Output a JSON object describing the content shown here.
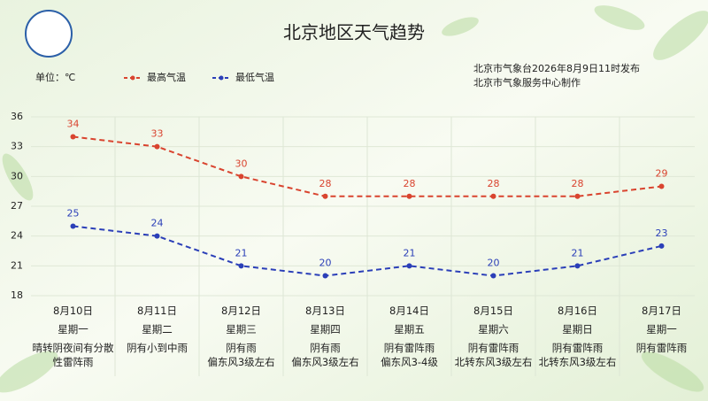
{
  "header": {
    "title": "北京地区天气趋势",
    "unit": "单位：℃",
    "publisher": "北京市气象台2026年8月9日11时发布",
    "producer": "北京市气象服务中心制作"
  },
  "chart_data": {
    "type": "line",
    "categories": [
      "8月10日",
      "8月11日",
      "8月12日",
      "8月13日",
      "8月14日",
      "8月15日",
      "8月16日",
      "8月17日"
    ],
    "series": [
      {
        "name": "最高气温",
        "color": "#d9442f",
        "values": [
          34,
          33,
          30,
          28,
          28,
          28,
          28,
          29
        ]
      },
      {
        "name": "最低气温",
        "color": "#2b3fb8",
        "values": [
          25,
          24,
          21,
          20,
          21,
          20,
          21,
          23
        ]
      }
    ],
    "ylim": [
      18,
      36
    ],
    "yticks": [
      18,
      21,
      24,
      27,
      30,
      33,
      36
    ],
    "grid": true,
    "legend": "top-left"
  },
  "forecast_table": {
    "weekdays": [
      "星期一",
      "星期二",
      "星期三",
      "星期四",
      "星期五",
      "星期六",
      "星期日",
      "星期一"
    ],
    "weather": [
      "晴转阴夜间有分散性雷阵雨",
      "阴有小到中雨",
      "阴有雨",
      "阴有雨",
      "阴有雷阵雨",
      "阴有雷阵雨",
      "阴有雷阵雨",
      "阴有雷阵雨"
    ],
    "wind": [
      null,
      null,
      "偏东风3级左右",
      "偏东风3级左右",
      "偏东风3-4级",
      "北转东风3级左右",
      "北转东风3级左右",
      null
    ]
  }
}
